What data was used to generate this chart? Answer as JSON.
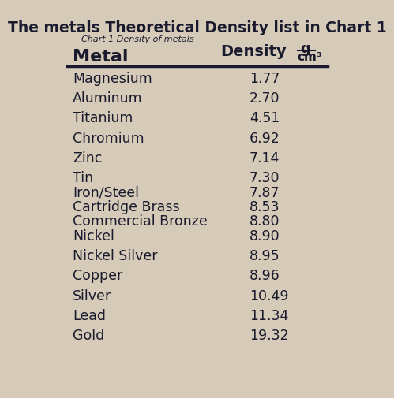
{
  "title": "The metals Theoretical Density list in Chart 1",
  "subtitle": "Chart 1 Density of metals",
  "col1_header": "Metal",
  "metals": [
    "Magnesium",
    "Aluminum",
    "Titanium",
    "Chromium",
    "Zinc",
    "Tin",
    "Iron/Steel",
    "Cartridge Brass",
    "Commercial Bronze",
    "Nickel",
    "Nickel Silver",
    "Copper",
    "Silver",
    "Lead",
    "Gold"
  ],
  "densities": [
    "1.77",
    "2.70",
    "4.51",
    "6.92",
    "7.14",
    "7.30",
    "7.87",
    "8.53",
    "8.80",
    "8.90",
    "8.95",
    "8.96",
    "10.49",
    "11.34",
    "19.32"
  ],
  "bg_color": "#d5cbb8",
  "text_color": "#1a1a2e",
  "title_fontsize": 13.5,
  "subtitle_fontsize": 8,
  "header_fontsize": 14,
  "row_fontsize": 12.5,
  "fig_width": 4.74,
  "fig_height": 6.3,
  "row_spacings": [
    0.052,
    0.052,
    0.052,
    0.052,
    0.052,
    0.038,
    0.038,
    0.038,
    0.038,
    0.052,
    0.052,
    0.052,
    0.052,
    0.052,
    0.052
  ]
}
